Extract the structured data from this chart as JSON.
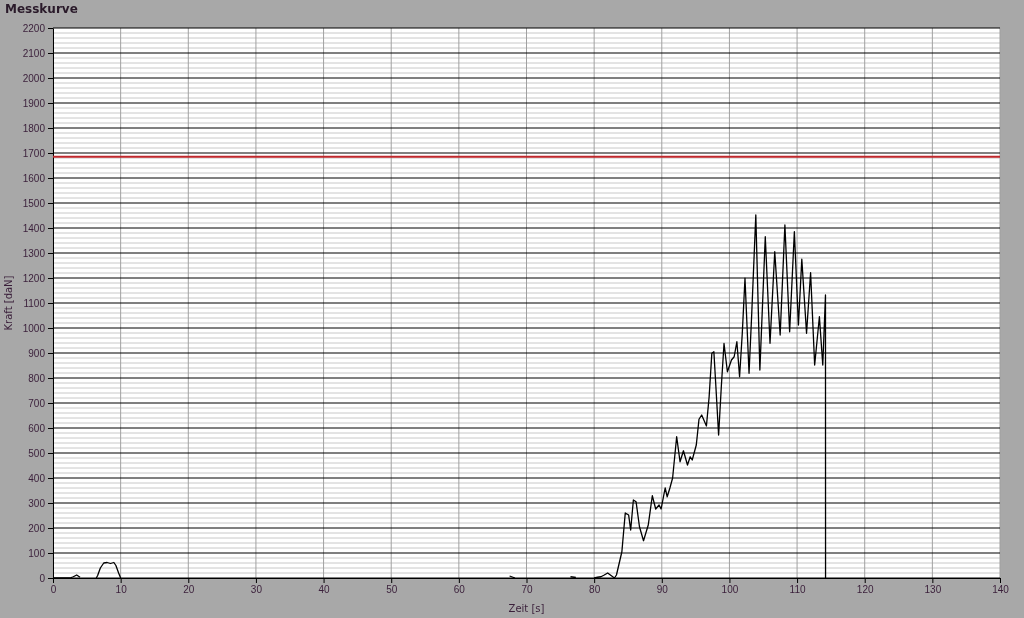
{
  "chart_data": {
    "type": "line",
    "title": "Messkurve",
    "xlabel": "Zeit [s]",
    "ylabel": "Kraft [daN]",
    "xlim": [
      0,
      140
    ],
    "xticks": [
      0,
      10,
      20,
      30,
      40,
      50,
      60,
      70,
      80,
      90,
      100,
      110,
      120,
      130,
      140
    ],
    "ylim": [
      0,
      2200
    ],
    "yticks": [
      0,
      100,
      200,
      300,
      400,
      500,
      600,
      700,
      800,
      900,
      1000,
      1100,
      1200,
      1300,
      1400,
      1500,
      1600,
      1700,
      1800,
      1900,
      2000,
      2100,
      2200
    ],
    "grid": true,
    "marker": "none",
    "line_style": "solid",
    "ref_lines": [
      {
        "axis": "y",
        "value": 1685,
        "color": "#c0282d"
      }
    ],
    "series": [
      {
        "color": "#000000",
        "x": [
          0,
          0.5,
          1,
          1.5,
          2,
          2.5,
          3,
          3.5,
          4,
          5,
          6.4,
          6.6,
          7,
          7.5,
          8,
          8.5,
          9,
          9.3,
          9.7,
          10,
          30,
          67.5,
          68.3,
          70,
          76.5,
          77.3,
          79,
          80,
          80.5,
          81,
          81.5,
          82,
          82.5,
          83,
          83.3,
          84.1,
          84.6,
          85.1,
          85.4,
          85.8,
          86.2,
          86.7,
          87.3,
          88.0,
          88.6,
          89.1,
          89.6,
          89.9,
          90.5,
          90.8,
          91.2,
          91.6,
          92.2,
          92.7,
          93.2,
          93.8,
          94.2,
          94.5,
          95.1,
          95.5,
          95.9,
          96.6,
          97.0,
          97.4,
          97.7,
          98.0,
          98.4,
          98.8,
          99.2,
          99.7,
          100.3,
          100.7,
          101.1,
          101.5,
          101.9,
          102.3,
          102.9,
          103.3,
          103.9,
          104.5,
          105.3,
          106.0,
          106.7,
          107.5,
          108.2,
          108.9,
          109.6,
          110.2,
          110.7,
          111.4,
          112.0,
          112.6,
          113.3,
          113.8,
          114.2,
          114.21
        ],
        "values": [
          0,
          0,
          0,
          0,
          0,
          0,
          5,
          12,
          3,
          null,
          0,
          10,
          40,
          60,
          62,
          58,
          62,
          50,
          20,
          0,
          null,
          8,
          0,
          null,
          5,
          2,
          null,
          0,
          3,
          5,
          12,
          20,
          10,
          0,
          12,
          105,
          260,
          252,
          192,
          312,
          305,
          205,
          149,
          212,
          329,
          276,
          292,
          276,
          360,
          325,
          360,
          400,
          565,
          465,
          509,
          452,
          485,
          472,
          532,
          635,
          652,
          608,
          725,
          899,
          905,
          765,
          572,
          765,
          938,
          825,
          872,
          885,
          945,
          805,
          979,
          1199,
          819,
          1059,
          1452,
          832,
          1365,
          939,
          1305,
          972,
          1412,
          985,
          1385,
          1012,
          1275,
          979,
          1221,
          852,
          1045,
          852,
          1132,
          0
        ]
      }
    ]
  }
}
